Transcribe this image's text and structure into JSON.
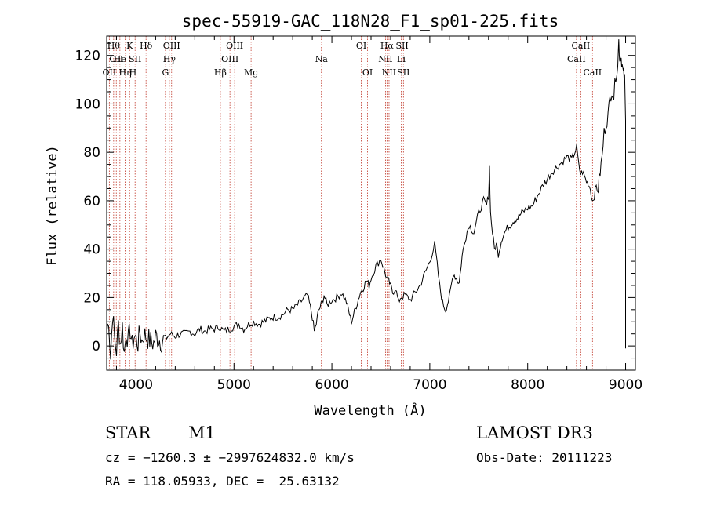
{
  "chart_data": {
    "type": "line",
    "title": "spec-55919-GAC_118N28_F1_sp01-225.fits",
    "xlabel": "Wavelength (Å)",
    "ylabel": "Flux (relative)",
    "xlim": [
      3700,
      9100
    ],
    "ylim": [
      -10,
      128
    ],
    "xticks": [
      4000,
      5000,
      6000,
      7000,
      8000,
      9000
    ],
    "yticks": [
      0,
      20,
      40,
      60,
      80,
      100,
      120
    ],
    "series": [
      {
        "name": "flux",
        "x": [
          3700,
          3720,
          3740,
          3760,
          3780,
          3800,
          3820,
          3840,
          3860,
          3880,
          3900,
          3920,
          3940,
          3960,
          3980,
          4000,
          4020,
          4040,
          4060,
          4080,
          4100,
          4120,
          4150,
          4180,
          4200,
          4230,
          4260,
          4300,
          4350,
          4400,
          4450,
          4500,
          4550,
          4600,
          4650,
          4700,
          4750,
          4800,
          4850,
          4900,
          4950,
          5000,
          5050,
          5100,
          5150,
          5200,
          5250,
          5300,
          5350,
          5400,
          5450,
          5500,
          5550,
          5600,
          5650,
          5700,
          5750,
          5780,
          5800,
          5820,
          5840,
          5860,
          5880,
          5900,
          5920,
          5950,
          6000,
          6050,
          6100,
          6150,
          6180,
          6200,
          6230,
          6260,
          6290,
          6320,
          6350,
          6380,
          6400,
          6450,
          6500,
          6530,
          6560,
          6590,
          6620,
          6650,
          6680,
          6700,
          6750,
          6800,
          6850,
          6900,
          6950,
          7000,
          7050,
          7100,
          7130,
          7160,
          7200,
          7240,
          7270,
          7300,
          7330,
          7360,
          7400,
          7450,
          7500,
          7550,
          7580,
          7600,
          7610,
          7620,
          7640,
          7660,
          7680,
          7700,
          7740,
          7780,
          7820,
          7860,
          7900,
          7940,
          8000,
          8050,
          8100,
          8150,
          8200,
          8250,
          8300,
          8350,
          8400,
          8450,
          8480,
          8500,
          8520,
          8540,
          8560,
          8580,
          8600,
          8620,
          8640,
          8660,
          8680,
          8700,
          8720,
          8740,
          8760,
          8780,
          8800,
          8820,
          8840,
          8860,
          8880,
          8900,
          8920,
          8930,
          8940,
          8950,
          8960,
          8970,
          8980,
          8990,
          9000
        ],
        "y": [
          5,
          12,
          -5,
          14,
          3,
          -2,
          9,
          1,
          8,
          -3,
          6,
          2,
          7,
          0,
          4,
          3,
          1,
          6,
          2,
          5,
          4,
          3,
          2,
          1,
          4,
          3,
          2,
          3,
          5,
          4,
          5,
          5,
          6,
          5,
          7,
          6,
          7,
          7,
          8,
          6,
          7,
          8,
          9,
          7,
          9,
          10,
          9,
          10,
          11,
          12,
          12,
          13,
          15,
          15,
          17,
          19,
          21,
          16,
          12,
          6,
          9,
          14,
          16,
          18,
          21,
          17,
          19,
          20,
          22,
          18,
          13,
          10,
          14,
          18,
          22,
          24,
          27,
          25,
          28,
          33,
          36,
          32,
          28,
          26,
          22,
          24,
          18,
          20,
          21,
          19,
          22,
          25,
          30,
          35,
          42,
          25,
          18,
          15,
          20,
          30,
          28,
          26,
          37,
          44,
          50,
          47,
          55,
          60,
          58,
          62,
          74,
          55,
          47,
          40,
          42,
          38,
          45,
          48,
          50,
          52,
          53,
          55,
          57,
          58,
          62,
          66,
          69,
          72,
          74,
          76,
          78,
          77,
          80,
          82,
          75,
          71,
          72,
          70,
          68,
          67,
          65,
          60,
          62,
          66,
          65,
          72,
          78,
          88,
          92,
          95,
          102,
          106,
          103,
          112,
          117,
          126,
          119,
          120,
          118,
          114,
          112,
          110,
          93
        ]
      }
    ],
    "line_labels": [
      {
        "wl": 3771,
        "text": "Hθ",
        "row": 1
      },
      {
        "wl": 3798,
        "text": "OII",
        "row": 2
      },
      {
        "wl": 3727,
        "text": "OII",
        "row": 3
      },
      {
        "wl": 3835,
        "text": "He",
        "row": 2
      },
      {
        "wl": 3889,
        "text": "Hη",
        "row": 3
      },
      {
        "wl": 3934,
        "text": "K",
        "row": 1
      },
      {
        "wl": 3968,
        "text": "H",
        "row": 3
      },
      {
        "wl": 3990,
        "text": "SII",
        "row": 2
      },
      {
        "wl": 4102,
        "text": "Hδ",
        "row": 1
      },
      {
        "wl": 4300,
        "text": "G",
        "row": 3
      },
      {
        "wl": 4340,
        "text": "Hγ",
        "row": 2
      },
      {
        "wl": 4363,
        "text": "OIII",
        "row": 1
      },
      {
        "wl": 4861,
        "text": "Hβ",
        "row": 3
      },
      {
        "wl": 4959,
        "text": "OIII",
        "row": 2
      },
      {
        "wl": 5007,
        "text": "OIII",
        "row": 1
      },
      {
        "wl": 5175,
        "text": "Mg",
        "row": 3
      },
      {
        "wl": 5893,
        "text": "Na",
        "row": 2
      },
      {
        "wl": 6300,
        "text": "OI",
        "row": 1
      },
      {
        "wl": 6364,
        "text": "OI",
        "row": 3
      },
      {
        "wl": 6548,
        "text": "NII",
        "row": 2
      },
      {
        "wl": 6563,
        "text": "Hα",
        "row": 1
      },
      {
        "wl": 6584,
        "text": "NII",
        "row": 3
      },
      {
        "wl": 6708,
        "text": "Li",
        "row": 2
      },
      {
        "wl": 6717,
        "text": "SII",
        "row": 1
      },
      {
        "wl": 6731,
        "text": "SII",
        "row": 3
      },
      {
        "wl": 8498,
        "text": "CaII",
        "row": 2
      },
      {
        "wl": 8542,
        "text": "CaII",
        "row": 1
      },
      {
        "wl": 8662,
        "text": "CaII",
        "row": 3
      }
    ]
  },
  "info": {
    "star_class": "STAR",
    "subclass": "M1",
    "survey": "LAMOST DR3",
    "cz": "cz = −1260.3 ± −2997624832.0 km/s",
    "obs_date": "Obs-Date: 20111223",
    "coords": "RA = 118.05933, DEC =  25.63132"
  }
}
